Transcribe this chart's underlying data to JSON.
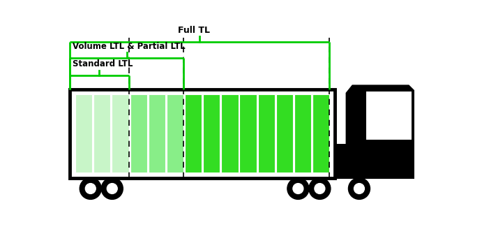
{
  "title": "Full TL",
  "label_volume": "Volume LTL & Partial LTL",
  "label_standard": "Standard LTL",
  "num_pallets": 14,
  "standard_ltl_count": 3,
  "volume_ltl_count": 6,
  "bracket_color": "#00cc00",
  "pallet_color_light": "#c8f5c8",
  "pallet_color_mid": "#88ee88",
  "pallet_color_bright": "#33dd22",
  "trailer_border_color": "#000000",
  "trailer_fill": "#ffffff"
}
